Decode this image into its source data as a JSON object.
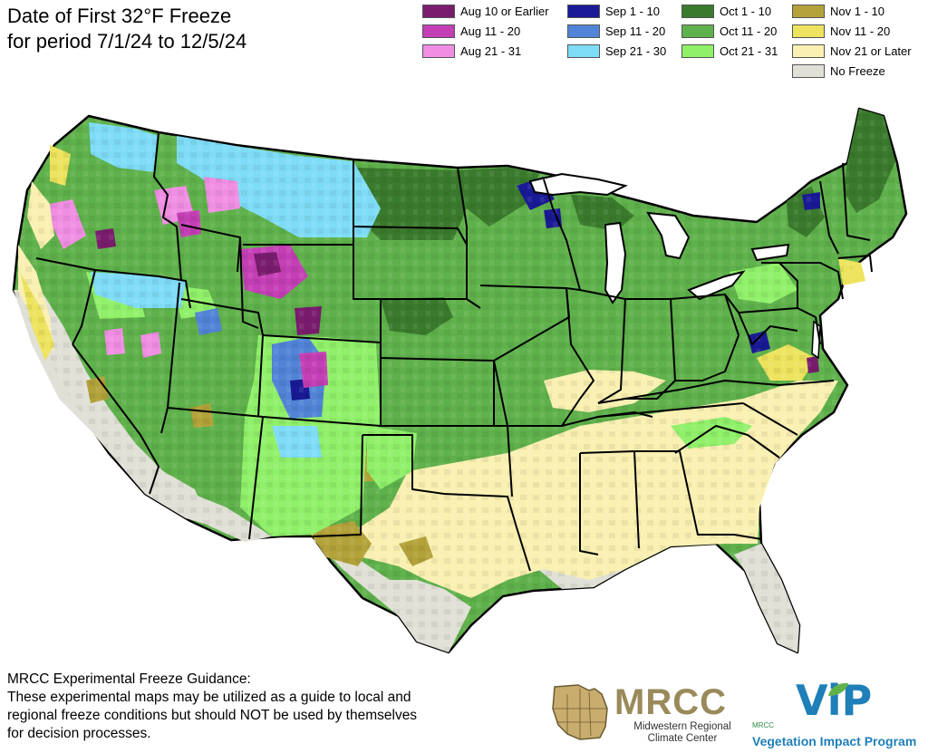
{
  "title": {
    "line1": "Date of First 32°F Freeze",
    "line2": "for period 7/1/24 to 12/5/24"
  },
  "legend": [
    {
      "label": "Aug 10 or Earlier",
      "color": "#7a1c6e"
    },
    {
      "label": "Aug 11 - 20",
      "color": "#c43fb5"
    },
    {
      "label": "Aug 21 - 31",
      "color": "#f08ee3"
    },
    {
      "label": "Sep 1 - 10",
      "color": "#1a1a96"
    },
    {
      "label": "Sep 11 - 20",
      "color": "#5184d6"
    },
    {
      "label": "Sep 21 - 30",
      "color": "#7fdcf7"
    },
    {
      "label": "Oct 1 - 10",
      "color": "#3a7a2c"
    },
    {
      "label": "Oct 11 - 20",
      "color": "#5fb14b"
    },
    {
      "label": "Oct 21 - 31",
      "color": "#90f06a"
    },
    {
      "label": "Nov 1 - 10",
      "color": "#b3a23a"
    },
    {
      "label": "Nov 11 - 20",
      "color": "#ede35e"
    },
    {
      "label": "Nov 21 or Later",
      "color": "#faf0b2"
    },
    {
      "label": "No Freeze",
      "color": "#e1e0d7"
    }
  ],
  "disclaimer": {
    "line1": "MRCC Experimental Freeze Guidance:",
    "line2": "These experimental maps may be utilized as a guide to local and",
    "line3": "regional freeze conditions but should NOT be used by themselves",
    "line4": "for decision processes."
  },
  "logos": {
    "mrcc_name": "MRCC",
    "mrcc_sub1": "Midwestern Regional",
    "mrcc_sub2": "Climate Center",
    "vip_prefix": "MRCC",
    "vip_mark": "ViP",
    "vip_name": "Vegetation Impact Program"
  }
}
